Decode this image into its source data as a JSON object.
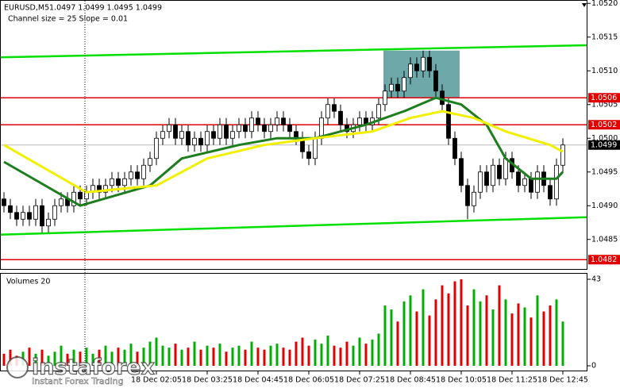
{
  "chart_data": {
    "type": "candlestick",
    "title": "EURUSD,M5",
    "subtitle": "1.0497 1.0499 1.0495 1.0499",
    "annotation": "Channel size = 25 Slope = 0.01",
    "open": [
      1.0491,
      1.049,
      1.0489,
      1.0488,
      1.0489,
      1.0488,
      1.049,
      1.0487,
      1.0488,
      1.049,
      1.0491,
      1.049,
      1.0492,
      1.0491,
      1.0492,
      1.0493,
      1.0492,
      1.0493,
      1.0494,
      1.0493,
      1.0494,
      1.0495,
      1.0494,
      1.0496,
      1.0497,
      1.05,
      1.0501,
      1.0502,
      1.05,
      1.0501,
      1.0499,
      1.05,
      1.0499,
      1.0501,
      1.05,
      1.0502,
      1.05,
      1.0501,
      1.0502,
      1.0501,
      1.0503,
      1.0502,
      1.0501,
      1.0502,
      1.0503,
      1.0502,
      1.0501,
      1.05,
      1.0498,
      1.0497,
      1.05,
      1.0503,
      1.0505,
      1.0504,
      1.0502,
      1.0501,
      1.0502,
      1.0503,
      1.0502,
      1.0503,
      1.0505,
      1.0507,
      1.0508,
      1.0507,
      1.0509,
      1.0511,
      1.051,
      1.0512,
      1.051,
      1.0507,
      1.0505,
      1.05,
      1.0497,
      1.0493,
      1.049,
      1.0492,
      1.0495,
      1.0493,
      1.0496,
      1.0494,
      1.0497,
      1.0495,
      1.0493,
      1.0494,
      1.0492,
      1.0495,
      1.0493,
      1.0491,
      1.0496
    ],
    "high": [
      1.0492,
      1.0491,
      1.049,
      1.049,
      1.049,
      1.0491,
      1.0491,
      1.0489,
      1.0491,
      1.0492,
      1.0492,
      1.0493,
      1.0493,
      1.0493,
      1.0494,
      1.0494,
      1.0494,
      1.0495,
      1.0495,
      1.0495,
      1.0496,
      1.0496,
      1.0497,
      1.0498,
      1.0501,
      1.0502,
      1.0503,
      1.0503,
      1.0502,
      1.0502,
      1.0501,
      1.0501,
      1.0502,
      1.0502,
      1.0503,
      1.0503,
      1.0502,
      1.0503,
      1.0503,
      1.0504,
      1.0504,
      1.0503,
      1.0503,
      1.0504,
      1.0504,
      1.0503,
      1.0502,
      1.0501,
      1.0499,
      1.0501,
      1.0504,
      1.0506,
      1.0506,
      1.0505,
      1.0503,
      1.0503,
      1.0504,
      1.0504,
      1.0504,
      1.0506,
      1.0508,
      1.0509,
      1.0509,
      1.051,
      1.0512,
      1.0512,
      1.0513,
      1.0513,
      1.0511,
      1.0508,
      1.0506,
      1.0501,
      1.0498,
      1.0494,
      1.0493,
      1.0496,
      1.0496,
      1.0497,
      1.0497,
      1.0498,
      1.0498,
      1.0496,
      1.0495,
      1.0495,
      1.0496,
      1.0496,
      1.0494,
      1.0497,
      1.05
    ],
    "low": [
      1.0489,
      1.0488,
      1.0487,
      1.0487,
      1.0487,
      1.0487,
      1.0486,
      1.0486,
      1.0487,
      1.0489,
      1.0489,
      1.0489,
      1.049,
      1.049,
      1.0491,
      1.0491,
      1.0491,
      1.0492,
      1.0492,
      1.0492,
      1.0493,
      1.0493,
      1.0493,
      1.0495,
      1.0496,
      1.0499,
      1.05,
      1.0499,
      1.0499,
      1.0498,
      1.0498,
      1.0498,
      1.0498,
      1.0499,
      1.0499,
      1.0499,
      1.0499,
      1.05,
      1.05,
      1.05,
      1.0501,
      1.05,
      1.05,
      1.0501,
      1.0501,
      1.05,
      1.0499,
      1.0497,
      1.0496,
      1.0496,
      1.0499,
      1.0502,
      1.0503,
      1.0501,
      1.05,
      1.05,
      1.0501,
      1.0501,
      1.0501,
      1.0502,
      1.0504,
      1.0506,
      1.0506,
      1.0506,
      1.0508,
      1.0509,
      1.0509,
      1.0509,
      1.0506,
      1.0504,
      1.0499,
      1.0496,
      1.0492,
      1.0488,
      1.0489,
      1.0491,
      1.0492,
      1.0492,
      1.0493,
      1.0493,
      1.0494,
      1.0492,
      1.0492,
      1.0491,
      1.0491,
      1.0492,
      1.049,
      1.049,
      1.0495
    ],
    "close": [
      1.049,
      1.0489,
      1.0488,
      1.0489,
      1.0488,
      1.049,
      1.0487,
      1.0488,
      1.049,
      1.0491,
      1.049,
      1.0492,
      1.0491,
      1.0492,
      1.0493,
      1.0492,
      1.0493,
      1.0494,
      1.0493,
      1.0494,
      1.0495,
      1.0494,
      1.0496,
      1.0497,
      1.05,
      1.0501,
      1.0502,
      1.05,
      1.0501,
      1.0499,
      1.05,
      1.0499,
      1.0501,
      1.05,
      1.0502,
      1.05,
      1.0501,
      1.0502,
      1.0501,
      1.0503,
      1.0502,
      1.0501,
      1.0502,
      1.0503,
      1.0502,
      1.0501,
      1.05,
      1.0498,
      1.0497,
      1.05,
      1.0503,
      1.0505,
      1.0504,
      1.0502,
      1.0501,
      1.0502,
      1.0503,
      1.0502,
      1.0503,
      1.0505,
      1.0507,
      1.0508,
      1.0507,
      1.0509,
      1.0511,
      1.051,
      1.0512,
      1.051,
      1.0507,
      1.0505,
      1.05,
      1.0497,
      1.0493,
      1.049,
      1.0492,
      1.0495,
      1.0493,
      1.0496,
      1.0494,
      1.0497,
      1.0495,
      1.0493,
      1.0494,
      1.0492,
      1.0495,
      1.0493,
      1.0491,
      1.0496,
      1.0499
    ],
    "ylim": [
      1.04805,
      1.05205
    ],
    "yticks": [
      {
        "value": 1.052,
        "label": "1.0520"
      },
      1.0515,
      {
        "value": 1.051,
        "label": "1.0510"
      },
      1.0505,
      {
        "value": 1.05,
        "label": "1.0500"
      },
      1.0495,
      {
        "value": 1.049,
        "label": "1.0490"
      },
      1.0485
    ],
    "xticks": [
      {
        "value": 24,
        "label": "18 Dec 02:05"
      },
      {
        "value": 32,
        "label": "18 Dec 03:25"
      },
      {
        "value": 40,
        "label": "18 Dec 04:45"
      },
      {
        "value": 48,
        "label": "18 Dec 06:05"
      },
      {
        "value": 56,
        "label": "18 Dec 07:25"
      },
      {
        "value": 64,
        "label": "18 Dec 08:45"
      },
      {
        "value": 72,
        "label": "18 Dec 10:05"
      },
      {
        "value": 80,
        "label": "18 Dec 11:25"
      },
      {
        "value": 88,
        "label": "18 Dec 12:45"
      }
    ],
    "lines": [
      {
        "color": "#1e7d1e",
        "x": [
          0,
          12,
          23,
          28,
          37,
          43,
          49,
          57,
          63,
          68,
          72,
          76,
          79,
          83,
          87,
          88
        ],
        "values": [
          1.04965,
          1.049,
          1.0493,
          1.0497,
          1.0499,
          1.05,
          1.05,
          1.0502,
          1.0504,
          1.0506,
          1.0505,
          1.0502,
          1.0497,
          1.0494,
          1.0494,
          1.0495
        ]
      },
      {
        "color": "#f0f000",
        "x": [
          0,
          13,
          24,
          32,
          41,
          49,
          58,
          64,
          69,
          74,
          79,
          86,
          88
        ],
        "values": [
          1.0499,
          1.0492,
          1.0493,
          1.0497,
          1.0499,
          1.05,
          1.0501,
          1.0503,
          1.0504,
          1.0503,
          1.0501,
          1.0499,
          1.0498
        ]
      }
    ],
    "channel": {
      "color": "#00e000",
      "upper": [
        1.0512,
        1.05138
      ],
      "lower": [
        1.04857,
        1.04883
      ]
    },
    "levels": {
      "values": [
        1.0506,
        1.0502,
        1.0482
      ],
      "color": "#e00000"
    },
    "current": 1.0499,
    "zone": {
      "x": [
        60,
        72
      ],
      "values": [
        1.0506,
        1.0513
      ],
      "color": "#5f9ea0"
    },
    "volume_label": "Volumes 20",
    "volumes": [
      6,
      8,
      5,
      7,
      9,
      6,
      8,
      5,
      7,
      10,
      6,
      8,
      7,
      9,
      6,
      8,
      10,
      7,
      9,
      8,
      11,
      7,
      9,
      12,
      14,
      10,
      9,
      11,
      8,
      9,
      12,
      8,
      10,
      9,
      11,
      7,
      9,
      10,
      8,
      12,
      9,
      8,
      10,
      11,
      9,
      8,
      12,
      14,
      10,
      13,
      11,
      15,
      10,
      9,
      12,
      10,
      14,
      11,
      13,
      16,
      30,
      28,
      22,
      32,
      35,
      27,
      38,
      25,
      33,
      40,
      36,
      42,
      43,
      30,
      38,
      32,
      35,
      28,
      40,
      33,
      26,
      31,
      29,
      24,
      35,
      27,
      30,
      33,
      22
    ],
    "volume_ylim": [
      0,
      43
    ],
    "volume_yticks": [
      0,
      43
    ],
    "up_color": "#00b000",
    "down_color": "#e00000",
    "watermark": "instaforex",
    "watermark_tagline": "Instant Forex Trading"
  }
}
